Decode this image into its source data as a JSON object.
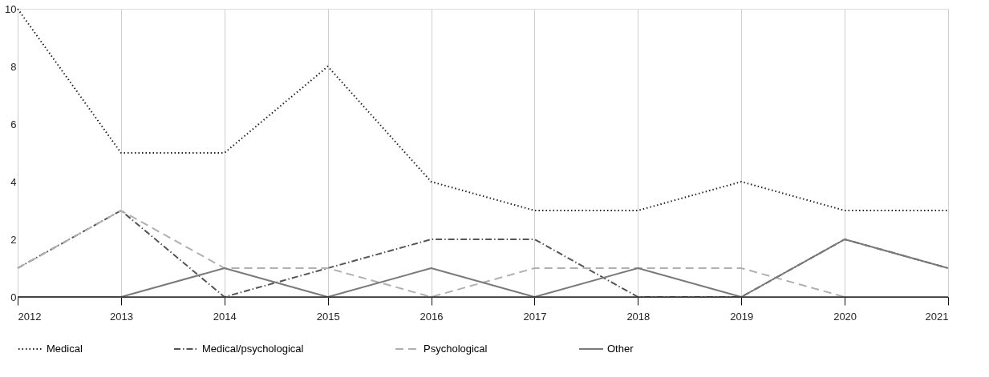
{
  "chart_data": {
    "type": "line",
    "categories": [
      "2012",
      "2013",
      "2014",
      "2015",
      "2016",
      "2017",
      "2018",
      "2019",
      "2020",
      "2021"
    ],
    "ylim": [
      0,
      10
    ],
    "yticks": [
      0,
      2,
      4,
      6,
      8,
      10
    ],
    "grid": "x",
    "legend": "bottom",
    "marker": "none",
    "series": [
      {
        "name": "Medical",
        "color": "#222222",
        "line_style": "dotted",
        "values": [
          10,
          5,
          5,
          8,
          4,
          3,
          3,
          4,
          3,
          3
        ]
      },
      {
        "name": "Medical/psychological",
        "color": "#555555",
        "line_style": "dashdot",
        "values": [
          1,
          3,
          0,
          1,
          2,
          2,
          0,
          0,
          2,
          1
        ]
      },
      {
        "name": "Psychological",
        "color": "#b0b0b0",
        "line_style": "dashed",
        "values": [
          1,
          3,
          1,
          1,
          0,
          1,
          1,
          1,
          0,
          null
        ]
      },
      {
        "name": "Other",
        "color": "#7a7a7a",
        "line_style": "solid",
        "values": [
          0,
          0,
          1,
          0,
          1,
          0,
          1,
          0,
          2,
          1
        ]
      }
    ]
  }
}
